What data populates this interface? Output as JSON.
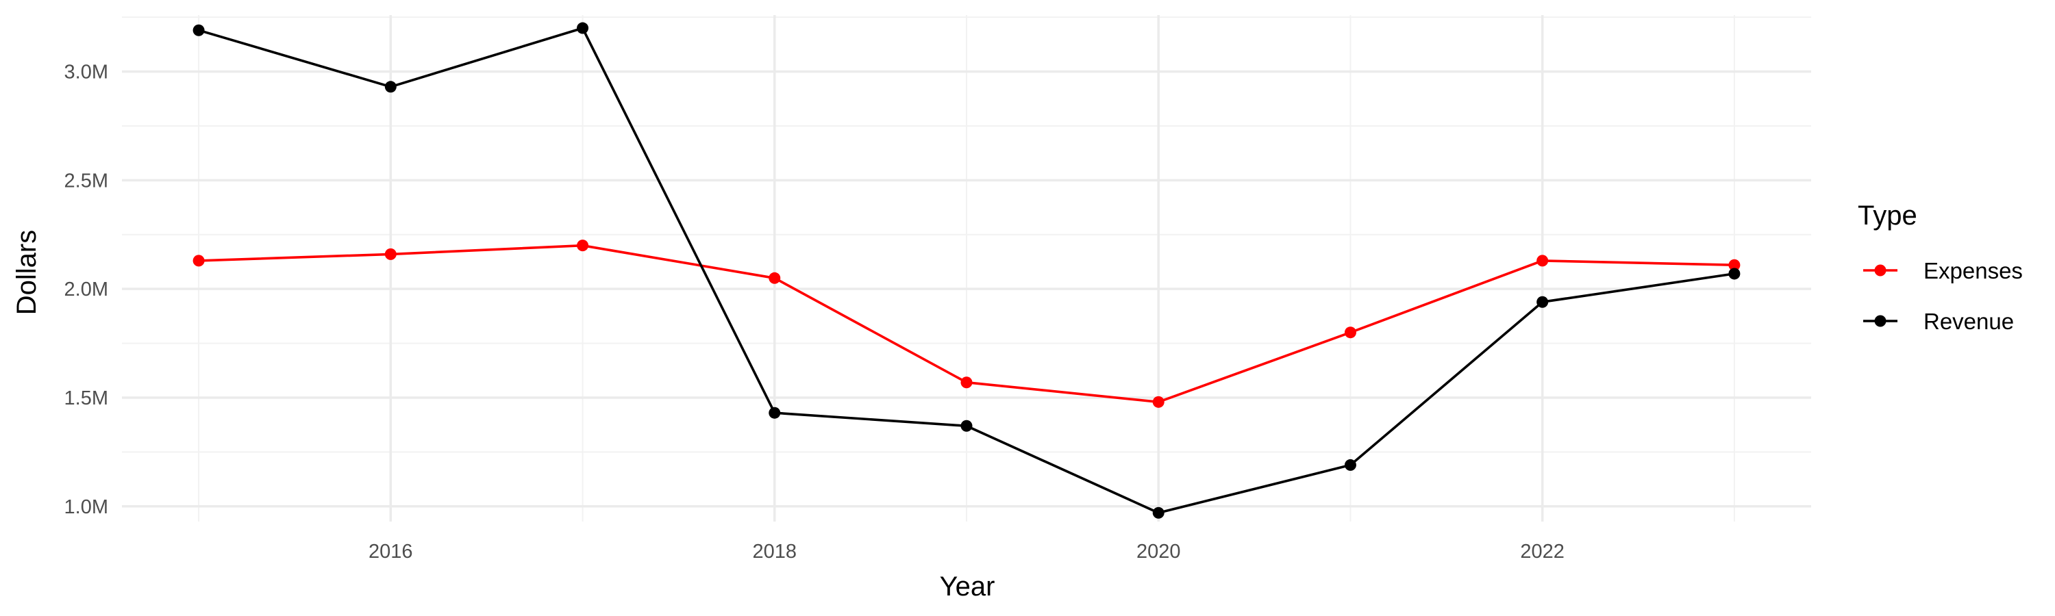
{
  "chart_data": {
    "type": "line",
    "title": "",
    "xlabel": "Year",
    "ylabel": "Dollars",
    "x": [
      2015,
      2016,
      2017,
      2018,
      2019,
      2020,
      2021,
      2022,
      2023
    ],
    "x_ticks": [
      2016,
      2018,
      2020,
      2022
    ],
    "x_tick_labels": [
      "2016",
      "2018",
      "2020",
      "2022"
    ],
    "y_ticks": [
      1000000,
      1500000,
      2000000,
      2500000,
      3000000
    ],
    "y_tick_labels": [
      "1.0M",
      "1.5M",
      "2.0M",
      "2.5M",
      "3.0M"
    ],
    "xlim": [
      2014.6,
      2023.4
    ],
    "ylim": [
      0.93,
      3.26
    ],
    "y_units": "millions of dollars",
    "grid": true,
    "legend": {
      "title": "Type",
      "position": "right",
      "entries": [
        "Expenses",
        "Revenue"
      ]
    },
    "series": [
      {
        "name": "Expenses",
        "color": "#ff0000",
        "values": [
          2.13,
          2.16,
          2.2,
          2.05,
          1.57,
          1.48,
          1.8,
          2.13,
          2.11
        ]
      },
      {
        "name": "Revenue",
        "color": "#000000",
        "values": [
          3.19,
          2.93,
          3.2,
          1.43,
          1.37,
          0.97,
          1.19,
          1.94,
          2.07
        ]
      }
    ]
  }
}
